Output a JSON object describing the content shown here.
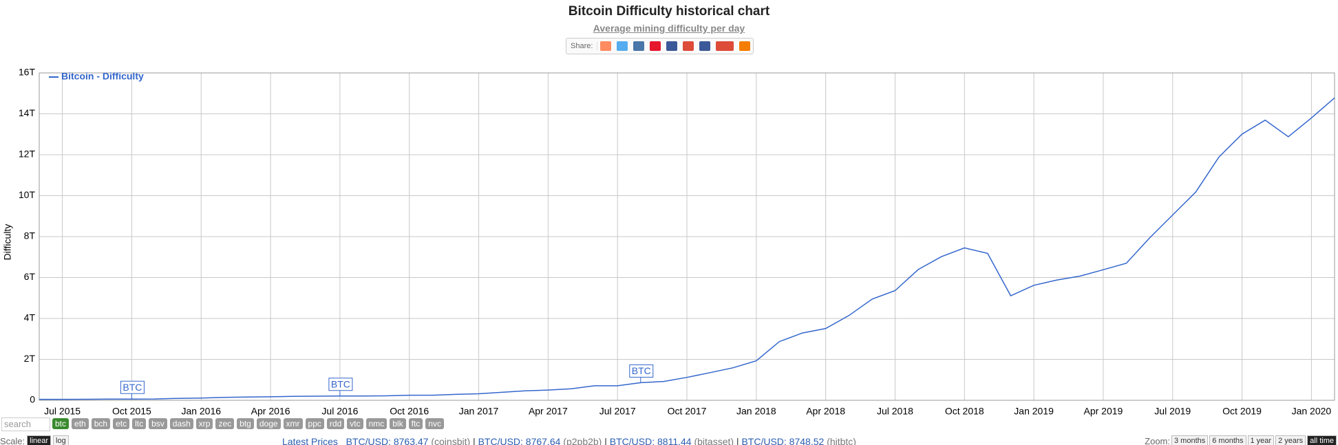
{
  "header": {
    "title": "Bitcoin Difficulty historical chart",
    "subtitle": "Average mining difficulty per day",
    "share_label": "Share:"
  },
  "chart_data": {
    "type": "line",
    "ylabel": "Difficulty",
    "x": [
      "2015-06",
      "2015-07",
      "2015-08",
      "2015-09",
      "2015-10",
      "2015-11",
      "2015-12",
      "2016-01",
      "2016-02",
      "2016-03",
      "2016-04",
      "2016-05",
      "2016-06",
      "2016-07",
      "2016-08",
      "2016-09",
      "2016-10",
      "2016-11",
      "2016-12",
      "2017-01",
      "2017-02",
      "2017-03",
      "2017-04",
      "2017-05",
      "2017-06",
      "2017-07",
      "2017-08",
      "2017-09",
      "2017-10",
      "2017-11",
      "2017-12",
      "2018-01",
      "2018-02",
      "2018-03",
      "2018-04",
      "2018-05",
      "2018-06",
      "2018-07",
      "2018-08",
      "2018-09",
      "2018-10",
      "2018-11",
      "2018-12",
      "2019-01",
      "2019-02",
      "2019-03",
      "2019-04",
      "2019-05",
      "2019-06",
      "2019-07",
      "2019-08",
      "2019-09",
      "2019-10",
      "2019-11",
      "2019-12",
      "2020-01",
      "2020-02"
    ],
    "series": [
      {
        "name": "Bitcoin - Difficulty",
        "color": "#3366cc",
        "values": [
          0.047,
          0.048,
          0.052,
          0.059,
          0.06,
          0.065,
          0.093,
          0.11,
          0.14,
          0.16,
          0.17,
          0.19,
          0.2,
          0.21,
          0.21,
          0.22,
          0.25,
          0.25,
          0.29,
          0.32,
          0.39,
          0.46,
          0.5,
          0.56,
          0.71,
          0.71,
          0.86,
          0.92,
          1.12,
          1.35,
          1.59,
          1.93,
          2.87,
          3.29,
          3.51,
          4.14,
          4.94,
          5.36,
          6.39,
          7.02,
          7.45,
          7.18,
          5.11,
          5.62,
          5.88,
          6.07,
          6.38,
          6.7,
          7.93,
          9.06,
          10.18,
          11.89,
          13.01,
          13.69,
          12.88,
          13.8,
          14.78
        ]
      }
    ],
    "xlim": [
      "2015-06",
      "2020-02"
    ],
    "xticks": [
      {
        "value": "2015-07",
        "label": "Jul 2015"
      },
      {
        "value": "2015-10",
        "label": "Oct 2015"
      },
      {
        "value": "2016-01",
        "label": "Jan 2016"
      },
      {
        "value": "2016-04",
        "label": "Apr 2016"
      },
      {
        "value": "2016-07",
        "label": "Jul 2016"
      },
      {
        "value": "2016-10",
        "label": "Oct 2016"
      },
      {
        "value": "2017-01",
        "label": "Jan 2017"
      },
      {
        "value": "2017-04",
        "label": "Apr 2017"
      },
      {
        "value": "2017-07",
        "label": "Jul 2017"
      },
      {
        "value": "2017-10",
        "label": "Oct 2017"
      },
      {
        "value": "2018-01",
        "label": "Jan 2018"
      },
      {
        "value": "2018-04",
        "label": "Apr 2018"
      },
      {
        "value": "2018-07",
        "label": "Jul 2018"
      },
      {
        "value": "2018-10",
        "label": "Oct 2018"
      },
      {
        "value": "2019-01",
        "label": "Jan 2019"
      },
      {
        "value": "2019-04",
        "label": "Apr 2019"
      },
      {
        "value": "2019-07",
        "label": "Jul 2019"
      },
      {
        "value": "2019-10",
        "label": "Oct 2019"
      },
      {
        "value": "2020-01",
        "label": "Jan 2020"
      }
    ],
    "ylim": [
      0,
      16
    ],
    "yticks": [
      0,
      {
        "value": 2,
        "label": "2T"
      },
      {
        "value": 4,
        "label": "4T"
      },
      {
        "value": 6,
        "label": "6T"
      },
      {
        "value": 8,
        "label": "8T"
      },
      {
        "value": 10,
        "label": "10T"
      },
      {
        "value": 12,
        "label": "12T"
      },
      {
        "value": 14,
        "label": "14T"
      },
      {
        "value": 16,
        "label": "16T"
      }
    ],
    "grid": true,
    "legend": "top-left",
    "annotations": [
      {
        "label": "BTC",
        "x": "2015-10"
      },
      {
        "label": "BTC",
        "x": "2016-07"
      },
      {
        "label": "BTC",
        "x": "2017-08"
      }
    ]
  },
  "controls": {
    "search_placeholder": "search",
    "coins": [
      "btc",
      "eth",
      "bch",
      "etc",
      "ltc",
      "bsv",
      "dash",
      "xrp",
      "zec",
      "btg",
      "doge",
      "xmr",
      "ppc",
      "rdd",
      "vtc",
      "nmc",
      "blk",
      "ftc",
      "nvc"
    ],
    "scale_label": "Scale:",
    "scale_options": [
      "linear",
      "log"
    ],
    "latest_label": "Latest Prices",
    "prices": [
      {
        "pair": "BTC/USD: 8763.47",
        "exchange": "(coinsbit)"
      },
      {
        "pair": "BTC/USD: 8767.64",
        "exchange": "(p2pb2b)"
      },
      {
        "pair": "BTC/USD: 8811.44",
        "exchange": "(bitasset)"
      },
      {
        "pair": "BTC/USD: 8748.52",
        "exchange": "(hitbtc)"
      }
    ],
    "zoom_label": "Zoom:",
    "zoom_options": [
      "3 months",
      "6 months",
      "1 year",
      "2 years",
      "all time"
    ]
  }
}
